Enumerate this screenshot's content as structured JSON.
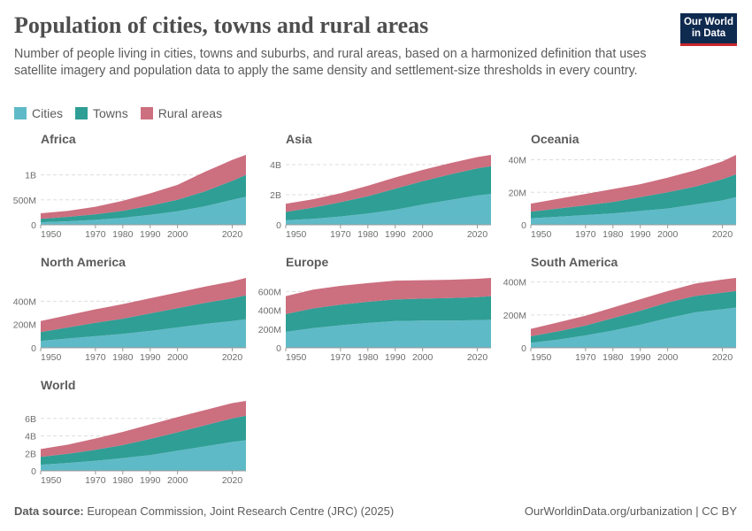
{
  "header": {
    "title": "Population of cities, towns and rural areas",
    "subtitle": "Number of people living in cities, towns and suburbs, and rural areas, based on a harmonized definition that uses satellite imagery and population data to apply the same density and settlement-size thresholds in every country.",
    "logo": "Our World in Data"
  },
  "legend": [
    {
      "label": "Cities",
      "color": "#5fbac7"
    },
    {
      "label": "Towns",
      "color": "#2f9e95"
    },
    {
      "label": "Rural areas",
      "color": "#cc6f7f"
    }
  ],
  "footer": {
    "source_label": "Data source:",
    "source": "European Commission, Joint Research Centre (JRC) (2025)",
    "link": "OurWorldinData.org/urbanization | CC BY"
  },
  "chart_data": [
    {
      "type": "area",
      "stacked": true,
      "title": "Africa",
      "unit": "billion",
      "x": [
        1950,
        1960,
        1970,
        1980,
        1990,
        2000,
        2010,
        2020,
        2025
      ],
      "xlim": [
        1950,
        2025
      ],
      "xticks": [
        "1950",
        "1970",
        "1980",
        "1990",
        "2000",
        "2020"
      ],
      "ylim": [
        0,
        1.4
      ],
      "yticks": [
        {
          "v": 0,
          "l": "0"
        },
        {
          "v": 0.5,
          "l": "500M"
        },
        {
          "v": 1,
          "l": "1B"
        }
      ],
      "series": [
        {
          "name": "Cities",
          "values": [
            0.05,
            0.07,
            0.1,
            0.14,
            0.2,
            0.27,
            0.37,
            0.5,
            0.56
          ]
        },
        {
          "name": "Towns",
          "values": [
            0.07,
            0.09,
            0.11,
            0.14,
            0.18,
            0.23,
            0.3,
            0.38,
            0.44
          ]
        },
        {
          "name": "Rural areas",
          "values": [
            0.11,
            0.12,
            0.15,
            0.2,
            0.25,
            0.3,
            0.39,
            0.42,
            0.4
          ]
        }
      ]
    },
    {
      "type": "area",
      "stacked": true,
      "title": "Asia",
      "unit": "billion",
      "x": [
        1950,
        1960,
        1970,
        1980,
        1990,
        2000,
        2010,
        2020,
        2025
      ],
      "xlim": [
        1950,
        2025
      ],
      "xticks": [
        "1950",
        "1970",
        "1980",
        "1990",
        "2000",
        "2020"
      ],
      "ylim": [
        0,
        4.65
      ],
      "yticks": [
        {
          "v": 0,
          "l": "0"
        },
        {
          "v": 2,
          "l": "2B"
        },
        {
          "v": 4,
          "l": "4B"
        }
      ],
      "series": [
        {
          "name": "Cities",
          "values": [
            0.3,
            0.4,
            0.55,
            0.75,
            1.0,
            1.35,
            1.65,
            1.95,
            2.05
          ]
        },
        {
          "name": "Towns",
          "values": [
            0.55,
            0.75,
            0.95,
            1.15,
            1.4,
            1.55,
            1.7,
            1.8,
            1.85
          ]
        },
        {
          "name": "Rural areas",
          "values": [
            0.55,
            0.55,
            0.6,
            0.7,
            0.75,
            0.75,
            0.75,
            0.75,
            0.75
          ]
        }
      ]
    },
    {
      "type": "area",
      "stacked": true,
      "title": "Oceania",
      "unit": "million",
      "x": [
        1950,
        1960,
        1970,
        1980,
        1990,
        2000,
        2010,
        2020,
        2025
      ],
      "xlim": [
        1950,
        2025
      ],
      "xticks": [
        "1950",
        "1970",
        "1980",
        "1990",
        "2000",
        "2020"
      ],
      "ylim": [
        0,
        43
      ],
      "yticks": [
        {
          "v": 0,
          "l": "0"
        },
        {
          "v": 20,
          "l": "20M"
        },
        {
          "v": 40,
          "l": "40M"
        }
      ],
      "series": [
        {
          "name": "Cities",
          "values": [
            4,
            5,
            6,
            7,
            8.5,
            10,
            12.5,
            15,
            17
          ]
        },
        {
          "name": "Towns",
          "values": [
            4,
            5,
            6,
            7,
            8.5,
            10,
            11,
            13,
            14
          ]
        },
        {
          "name": "Rural areas",
          "values": [
            5,
            6,
            7,
            8,
            8,
            9,
            10,
            11,
            12
          ]
        }
      ]
    },
    {
      "type": "area",
      "stacked": true,
      "title": "North America",
      "unit": "million",
      "x": [
        1950,
        1960,
        1970,
        1980,
        1990,
        2000,
        2010,
        2020,
        2025
      ],
      "xlim": [
        1950,
        2025
      ],
      "xticks": [
        "1950",
        "1970",
        "1980",
        "1990",
        "2000",
        "2020"
      ],
      "ylim": [
        0,
        600
      ],
      "yticks": [
        {
          "v": 0,
          "l": "0"
        },
        {
          "v": 200,
          "l": "200M"
        },
        {
          "v": 400,
          "l": "400M"
        }
      ],
      "series": [
        {
          "name": "Cities",
          "values": [
            60,
            80,
            100,
            120,
            145,
            175,
            205,
            230,
            245
          ]
        },
        {
          "name": "Towns",
          "values": [
            75,
            95,
            115,
            130,
            150,
            165,
            180,
            195,
            205
          ]
        },
        {
          "name": "Rural areas",
          "values": [
            95,
            105,
            115,
            125,
            130,
            135,
            140,
            145,
            150
          ]
        }
      ]
    },
    {
      "type": "area",
      "stacked": true,
      "title": "Europe",
      "unit": "million",
      "x": [
        1950,
        1960,
        1970,
        1980,
        1990,
        2000,
        2010,
        2020,
        2025
      ],
      "xlim": [
        1950,
        2025
      ],
      "xticks": [
        "1950",
        "1970",
        "1980",
        "1990",
        "2000",
        "2020"
      ],
      "ylim": [
        0,
        745
      ],
      "yticks": [
        {
          "v": 0,
          "l": "0"
        },
        {
          "v": 200,
          "l": "200M"
        },
        {
          "v": 400,
          "l": "400M"
        },
        {
          "v": 600,
          "l": "600M"
        }
      ],
      "series": [
        {
          "name": "Cities",
          "values": [
            170,
            210,
            240,
            265,
            285,
            290,
            290,
            295,
            300
          ]
        },
        {
          "name": "Towns",
          "values": [
            190,
            210,
            220,
            225,
            230,
            235,
            240,
            245,
            250
          ]
        },
        {
          "name": "Rural areas",
          "values": [
            190,
            200,
            200,
            200,
            200,
            195,
            195,
            195,
            195
          ]
        }
      ]
    },
    {
      "type": "area",
      "stacked": true,
      "title": "South America",
      "unit": "million",
      "x": [
        1950,
        1960,
        1970,
        1980,
        1990,
        2000,
        2010,
        2020,
        2025
      ],
      "xlim": [
        1950,
        2025
      ],
      "xticks": [
        "1950",
        "1970",
        "1980",
        "1990",
        "2000",
        "2020"
      ],
      "ylim": [
        0,
        425
      ],
      "yticks": [
        {
          "v": 0,
          "l": "0"
        },
        {
          "v": 200,
          "l": "200M"
        },
        {
          "v": 400,
          "l": "400M"
        }
      ],
      "series": [
        {
          "name": "Cities",
          "values": [
            30,
            50,
            75,
            105,
            140,
            180,
            215,
            235,
            245
          ]
        },
        {
          "name": "Towns",
          "values": [
            40,
            50,
            60,
            75,
            85,
            95,
            100,
            100,
            100
          ]
        },
        {
          "name": "Rural areas",
          "values": [
            45,
            55,
            60,
            65,
            70,
            70,
            75,
            80,
            80
          ]
        }
      ]
    },
    {
      "type": "area",
      "stacked": true,
      "title": "World",
      "unit": "billion",
      "x": [
        1950,
        1960,
        1970,
        1980,
        1990,
        2000,
        2010,
        2020,
        2025
      ],
      "xlim": [
        1950,
        2025
      ],
      "xticks": [
        "1950",
        "1970",
        "1980",
        "1990",
        "2000",
        "2020"
      ],
      "ylim": [
        0,
        8.0
      ],
      "yticks": [
        {
          "v": 0,
          "l": "0"
        },
        {
          "v": 2,
          "l": "2B"
        },
        {
          "v": 4,
          "l": "4B"
        },
        {
          "v": 6,
          "l": "6B"
        }
      ],
      "series": [
        {
          "name": "Cities",
          "values": [
            0.7,
            0.9,
            1.15,
            1.45,
            1.8,
            2.3,
            2.8,
            3.3,
            3.5
          ]
        },
        {
          "name": "Towns",
          "values": [
            0.9,
            1.05,
            1.25,
            1.5,
            1.85,
            2.1,
            2.4,
            2.7,
            2.8
          ]
        },
        {
          "name": "Rural areas",
          "values": [
            0.9,
            1.05,
            1.3,
            1.5,
            1.65,
            1.75,
            1.75,
            1.75,
            1.7
          ]
        }
      ]
    }
  ]
}
